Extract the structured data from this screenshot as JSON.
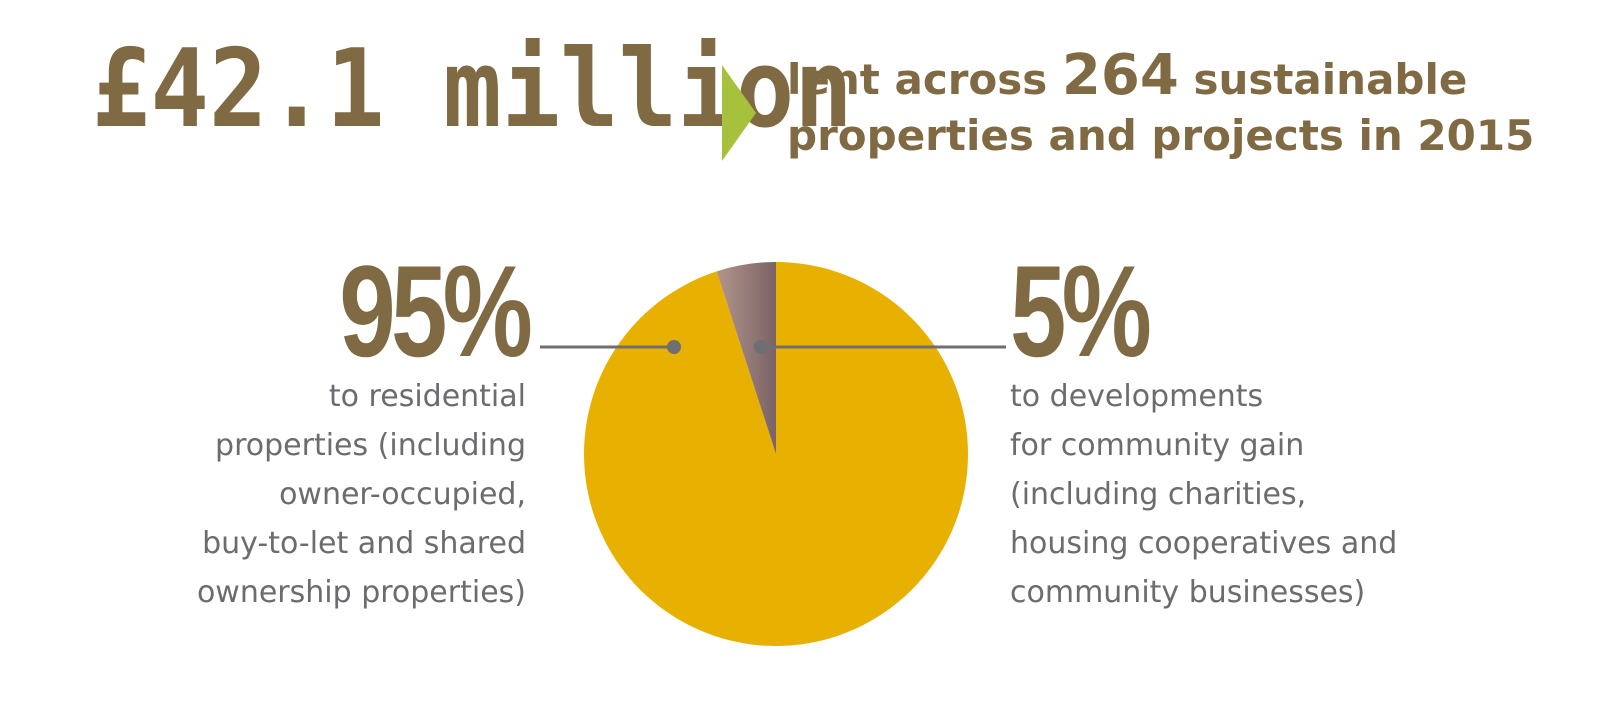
{
  "colors": {
    "brand_brown": "#806a43",
    "arrow_green": "#a6c23d",
    "pie_residential": "#e8b102",
    "pie_community": "#b2958b",
    "text_grey": "#6b6b70",
    "connector_grey": "#6e6e73"
  },
  "headline": {
    "amount": "£42.1 million",
    "desc_line1_pre": "lent across ",
    "desc_number": "264",
    "desc_line1_post": " sustainable",
    "desc_line2": "properties and projects in 2015",
    "arrow_icon": "triangle-right-icon"
  },
  "chart_data": {
    "type": "pie",
    "slices": [
      {
        "label": "95%",
        "value": 95,
        "color": "#e8b102",
        "description": [
          "to residential",
          "properties (including",
          "owner-occupied,",
          "buy-to-let and shared",
          "ownership properties)"
        ]
      },
      {
        "label": "5%",
        "value": 5,
        "color": "#b2958b",
        "description": [
          "to developments",
          "for community gain",
          "(including charities,",
          "housing cooperatives and",
          "community businesses)"
        ]
      }
    ]
  }
}
